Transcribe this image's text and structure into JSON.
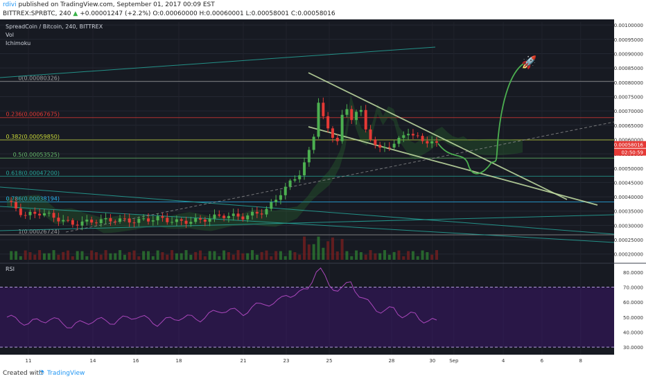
{
  "header": {
    "author": "rdivi",
    "published": " published on TradingView.com, September 01, 2017 00:09 EST",
    "symbol": "BITTREX:SPRBTC, 240",
    "change": "+0.00001247 (+2.2%)",
    "ohlc": "O:0.00060000 H:0.00060001 L:0.00058001 C:0.00058016"
  },
  "legend": {
    "title": "SpreadCoin / Bitcoin, 240, BITTREX",
    "vol": "Vol",
    "ichimoku": "Ichimoku"
  },
  "footer": {
    "created_with": "Created with",
    "brand": "TradingView"
  },
  "chart_data": {
    "type": "candlestick",
    "x_ticks": [
      "11",
      "14",
      "16",
      "18",
      "21",
      "23",
      "25",
      "28",
      "30",
      "Sep",
      "4",
      "6",
      "8"
    ],
    "price_axis": {
      "ylim": [
        0.00018,
        0.00101
      ],
      "ticks": [
        "0.00100000",
        "0.00095000",
        "0.00090000",
        "0.00085000",
        "0.00080000",
        "0.00075000",
        "0.00070000",
        "0.00065000",
        "0.00060000",
        "0.00055000",
        "0.00050000",
        "0.00045000",
        "0.00040000",
        "0.00035000",
        "0.00030000",
        "0.00025000",
        "0.00020000"
      ],
      "last_price": "0.00058016",
      "countdown": "02:50:59"
    },
    "fib_levels": [
      {
        "label": "0(0.00080326)",
        "value": 0.00080326,
        "color": "#9e9e9e"
      },
      {
        "label": "0.236(0.00067675)",
        "value": 0.00067675,
        "color": "#e53935"
      },
      {
        "label": "0.382(0.00059850)",
        "value": 0.0005985,
        "color": "#cddc39"
      },
      {
        "label": "0.5(0.00053525)",
        "value": 0.00053525,
        "color": "#66bb6a"
      },
      {
        "label": "0.618(0.00047200)",
        "value": 0.000472,
        "color": "#26a69a"
      },
      {
        "label": "0.786(0.00038194)",
        "value": 0.00038194,
        "color": "#29b6f6"
      },
      {
        "label": "1(0.00026724)",
        "value": 0.00026724,
        "color": "#9e9e9e"
      }
    ],
    "price_path": [
      {
        "t": 0,
        "p": 0.000385
      },
      {
        "t": 0.8,
        "p": 0.000335
      },
      {
        "t": 1.6,
        "p": 0.000345
      },
      {
        "t": 2.5,
        "p": 0.00032
      },
      {
        "t": 3,
        "p": 0.000305
      },
      {
        "t": 4,
        "p": 0.000315
      },
      {
        "t": 5,
        "p": 0.00032
      },
      {
        "t": 6,
        "p": 0.000315
      },
      {
        "t": 7,
        "p": 0.000325
      },
      {
        "t": 8,
        "p": 0.000312
      },
      {
        "t": 9,
        "p": 0.000318
      },
      {
        "t": 10,
        "p": 0.000335
      },
      {
        "t": 11,
        "p": 0.00033
      },
      {
        "t": 12,
        "p": 0.00035
      },
      {
        "t": 12.4,
        "p": 0.00038
      },
      {
        "t": 12.8,
        "p": 0.00042
      },
      {
        "t": 13.2,
        "p": 0.00045
      },
      {
        "t": 13.6,
        "p": 0.00048
      },
      {
        "t": 14,
        "p": 0.00054
      },
      {
        "t": 14.3,
        "p": 0.00062
      },
      {
        "t": 14.45,
        "p": 0.00075
      },
      {
        "t": 14.7,
        "p": 0.00068
      },
      {
        "t": 15,
        "p": 0.00062
      },
      {
        "t": 15.4,
        "p": 0.0006
      },
      {
        "t": 15.7,
        "p": 0.00072
      },
      {
        "t": 16,
        "p": 0.00067
      },
      {
        "t": 16.4,
        "p": 0.00072
      },
      {
        "t": 16.7,
        "p": 0.00063
      },
      {
        "t": 17,
        "p": 0.0006
      },
      {
        "t": 17.4,
        "p": 0.00056
      },
      {
        "t": 17.8,
        "p": 0.00058
      },
      {
        "t": 18.3,
        "p": 0.0006
      },
      {
        "t": 18.7,
        "p": 0.00063
      },
      {
        "t": 19,
        "p": 0.00061
      },
      {
        "t": 19.4,
        "p": 0.00059
      },
      {
        "t": 19.7,
        "p": 0.0006
      },
      {
        "t": 20,
        "p": 0.00058
      }
    ],
    "rsi": {
      "ticks": [
        "80.0000",
        "70.0000",
        "60.0000",
        "50.0000",
        "40.0000",
        "30.0000"
      ],
      "ylim": [
        25,
        85
      ],
      "upper_band": 70,
      "lower_band": 30,
      "path": [
        {
          "t": 0,
          "p": 50
        },
        {
          "t": 1,
          "p": 46
        },
        {
          "t": 2,
          "p": 49
        },
        {
          "t": 3,
          "p": 44
        },
        {
          "t": 4,
          "p": 48
        },
        {
          "t": 5,
          "p": 47
        },
        {
          "t": 6,
          "p": 51
        },
        {
          "t": 7,
          "p": 46
        },
        {
          "t": 8,
          "p": 50
        },
        {
          "t": 9,
          "p": 49
        },
        {
          "t": 10,
          "p": 55
        },
        {
          "t": 11,
          "p": 53
        },
        {
          "t": 12,
          "p": 60
        },
        {
          "t": 12.5,
          "p": 58
        },
        {
          "t": 13,
          "p": 66
        },
        {
          "t": 13.5,
          "p": 64
        },
        {
          "t": 14,
          "p": 70
        },
        {
          "t": 14.5,
          "p": 83
        },
        {
          "t": 15,
          "p": 72
        },
        {
          "t": 15.5,
          "p": 67
        },
        {
          "t": 16,
          "p": 74
        },
        {
          "t": 16.5,
          "p": 62
        },
        {
          "t": 17,
          "p": 58
        },
        {
          "t": 17.5,
          "p": 53
        },
        {
          "t": 18,
          "p": 56
        },
        {
          "t": 18.5,
          "p": 50
        },
        {
          "t": 19,
          "p": 52
        },
        {
          "t": 19.5,
          "p": 47
        },
        {
          "t": 20,
          "p": 47
        }
      ]
    }
  }
}
